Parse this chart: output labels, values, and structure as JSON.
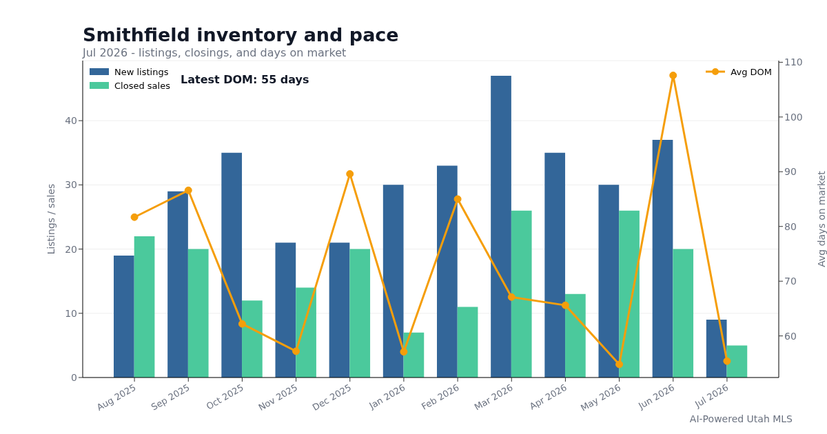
{
  "chart_data": {
    "type": "bar",
    "title": "Smithfield inventory and pace",
    "subtitle": "Jul 2026 - listings, closings, and days on market",
    "ylabel": "Listings / sales",
    "y2label": "Avg days on market",
    "categories": [
      "Aug 2025",
      "Sep 2025",
      "Oct 2025",
      "Nov 2025",
      "Dec 2025",
      "Jan 2026",
      "Feb 2026",
      "Mar 2026",
      "Apr 2026",
      "May 2026",
      "Jun 2026",
      "Jul 2026"
    ],
    "series": [
      {
        "name": "New listings",
        "color": "#336699",
        "values": [
          19,
          29,
          35,
          21,
          21,
          30,
          33,
          47,
          35,
          30,
          37,
          9
        ]
      },
      {
        "name": "Closed sales",
        "color": "#4bc99c",
        "values": [
          22,
          20,
          12,
          14,
          20,
          7,
          11,
          26,
          13,
          26,
          20,
          5
        ]
      },
      {
        "name": "Avg DOM",
        "type": "line",
        "axis": "y2",
        "color": "#f59e0b",
        "values": [
          81.7,
          86.6,
          62.2,
          57.2,
          89.6,
          57.1,
          85.0,
          67.1,
          65.6,
          54.8,
          107.6,
          55.4
        ]
      }
    ],
    "ylim": [
      0,
      49.35
    ],
    "yticks": [
      0,
      10,
      20,
      30,
      40
    ],
    "y2lim": [
      52.4,
      110.3
    ],
    "y2ticks": [
      60,
      70,
      80,
      90,
      100,
      110
    ],
    "grid": "y",
    "legend": "top",
    "marker": "circle",
    "annotations": [
      "Latest DOM: 55 days",
      "AI-Powered Utah MLS"
    ]
  }
}
